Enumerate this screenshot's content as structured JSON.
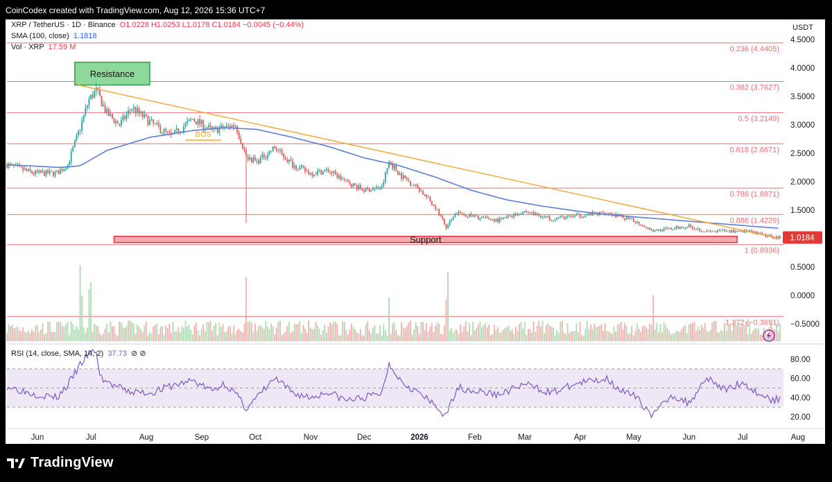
{
  "header": {
    "text": "CoinCodex created with TradingView.com, Aug 12, 2026 15:36 UTC+7"
  },
  "legend": {
    "symbol": "XRP / TetherUS · 1D · Binance",
    "ohlc": "O1.0228 H1.0253 L1.0178 C1.0184 −0.0045 (−0.44%)",
    "sma_label": "SMA (100, close)",
    "sma_value": "1.1818",
    "vol_label": "Vol · XRP",
    "vol_value": "17.59 M",
    "rsi_label": "RSI (14, close, SMA, 14, 2)",
    "rsi_value": "37.73",
    "rsi_icons": "⊘ ⊘"
  },
  "colors": {
    "up": "#26a69a",
    "down": "#ef5350",
    "sma": "#5b7fd6",
    "trend": "#f0a732",
    "fib": "#f26b74",
    "support_fill": "#f7a9ae",
    "support_border": "#e0323f",
    "resistance_fill": "#8fd89c",
    "resistance_border": "#2e9e45",
    "rsi_line": "#7e57c2",
    "rsi_band": "#ede7f6",
    "price_tag": "#e53935"
  },
  "chart_data": {
    "type": "candlestick",
    "title": "XRP / TetherUS · 1D · Binance",
    "currency": "USDT",
    "current_price": "1.0184",
    "price_ticks": [
      "4.5000",
      "4.0000",
      "3.5000",
      "3.0000",
      "2.5000",
      "2.0000",
      "1.5000",
      "1.0000",
      "0.5000",
      "0.0000",
      "−0.5000"
    ],
    "price_tick_values": [
      4.5,
      4.0,
      3.5,
      3.0,
      2.5,
      2.0,
      1.5,
      1.0,
      0.5,
      0.0,
      -0.5
    ],
    "x_ticks": [
      "Jun",
      "Jul",
      "Aug",
      "Sep",
      "Oct",
      "Nov",
      "Dec",
      "2026",
      "Feb",
      "Mar",
      "Apr",
      "May",
      "Jun",
      "Jul",
      "Aug"
    ],
    "x_tick_days": [
      0,
      30,
      61,
      92,
      122,
      153,
      183,
      214,
      245,
      273,
      304,
      334,
      365,
      395,
      426
    ],
    "fib_levels": [
      {
        "label": "0.236 (4.4405)",
        "value": 4.4405
      },
      {
        "label": "0.382 (3.7627)",
        "value": 3.7627
      },
      {
        "label": "0.5 (3.2149)",
        "value": 3.2149
      },
      {
        "label": "0.618 (2.6671)",
        "value": 2.6671
      },
      {
        "label": "0.786 (1.8871)",
        "value": 1.8871
      },
      {
        "label": "0.886 (1.4229)",
        "value": 1.4229
      },
      {
        "label": "1 (0.8936)",
        "value": 0.8936
      },
      {
        "label": "1.272 (−0.3691)",
        "value": -0.3691
      }
    ],
    "resistance_label": "Resistance",
    "support_label": "Support",
    "bos_label": "BOS",
    "rsi_ticks": [
      "80.00",
      "60.00",
      "40.00",
      "20.00"
    ],
    "rsi_tick_values": [
      80,
      60,
      40,
      20
    ],
    "price_anchors": [
      [
        0,
        2.3
      ],
      [
        15,
        2.15
      ],
      [
        28,
        2.15
      ],
      [
        34,
        2.3
      ],
      [
        41,
        2.95
      ],
      [
        46,
        3.45
      ],
      [
        50,
        3.6
      ],
      [
        56,
        3.2
      ],
      [
        63,
        3.0
      ],
      [
        70,
        3.3
      ],
      [
        80,
        3.05
      ],
      [
        92,
        2.8
      ],
      [
        104,
        3.1
      ],
      [
        115,
        2.9
      ],
      [
        122,
        2.95
      ],
      [
        128,
        3.0
      ],
      [
        134,
        2.45
      ],
      [
        140,
        2.35
      ],
      [
        150,
        2.6
      ],
      [
        160,
        2.3
      ],
      [
        170,
        2.15
      ],
      [
        180,
        2.2
      ],
      [
        190,
        2.0
      ],
      [
        200,
        1.85
      ],
      [
        210,
        1.9
      ],
      [
        214,
        2.35
      ],
      [
        221,
        2.1
      ],
      [
        230,
        1.9
      ],
      [
        240,
        1.55
      ],
      [
        246,
        1.2
      ],
      [
        252,
        1.45
      ],
      [
        262,
        1.38
      ],
      [
        275,
        1.32
      ],
      [
        290,
        1.48
      ],
      [
        305,
        1.35
      ],
      [
        320,
        1.4
      ],
      [
        336,
        1.46
      ],
      [
        346,
        1.36
      ],
      [
        352,
        1.3
      ],
      [
        362,
        1.14
      ],
      [
        372,
        1.17
      ],
      [
        382,
        1.22
      ],
      [
        392,
        1.12
      ],
      [
        402,
        1.13
      ],
      [
        412,
        1.14
      ],
      [
        420,
        1.09
      ],
      [
        428,
        1.03
      ],
      [
        433,
        1.02
      ]
    ],
    "sma_anchors": [
      [
        0,
        2.3
      ],
      [
        30,
        2.25
      ],
      [
        41,
        2.28
      ],
      [
        56,
        2.55
      ],
      [
        80,
        2.78
      ],
      [
        104,
        2.9
      ],
      [
        122,
        2.95
      ],
      [
        140,
        2.92
      ],
      [
        160,
        2.78
      ],
      [
        180,
        2.62
      ],
      [
        200,
        2.42
      ],
      [
        220,
        2.28
      ],
      [
        240,
        2.08
      ],
      [
        260,
        1.85
      ],
      [
        280,
        1.68
      ],
      [
        300,
        1.57
      ],
      [
        320,
        1.48
      ],
      [
        340,
        1.41
      ],
      [
        360,
        1.36
      ],
      [
        380,
        1.31
      ],
      [
        400,
        1.26
      ],
      [
        420,
        1.21
      ],
      [
        433,
        1.18
      ]
    ],
    "rsi_anchors": [
      [
        0,
        52
      ],
      [
        15,
        44
      ],
      [
        28,
        40
      ],
      [
        34,
        53
      ],
      [
        41,
        74
      ],
      [
        46,
        86
      ],
      [
        50,
        89
      ],
      [
        52,
        62
      ],
      [
        58,
        54
      ],
      [
        68,
        46
      ],
      [
        80,
        45
      ],
      [
        92,
        52
      ],
      [
        104,
        58
      ],
      [
        115,
        47
      ],
      [
        122,
        55
      ],
      [
        128,
        44
      ],
      [
        134,
        29
      ],
      [
        140,
        40
      ],
      [
        150,
        60
      ],
      [
        160,
        45
      ],
      [
        170,
        40
      ],
      [
        180,
        46
      ],
      [
        190,
        37
      ],
      [
        200,
        40
      ],
      [
        210,
        45
      ],
      [
        214,
        76
      ],
      [
        221,
        57
      ],
      [
        230,
        46
      ],
      [
        240,
        31
      ],
      [
        246,
        20
      ],
      [
        252,
        51
      ],
      [
        262,
        47
      ],
      [
        275,
        43
      ],
      [
        290,
        54
      ],
      [
        305,
        45
      ],
      [
        320,
        55
      ],
      [
        336,
        60
      ],
      [
        346,
        45
      ],
      [
        352,
        41
      ],
      [
        362,
        21
      ],
      [
        372,
        43
      ],
      [
        382,
        34
      ],
      [
        392,
        62
      ],
      [
        402,
        48
      ],
      [
        412,
        56
      ],
      [
        420,
        45
      ],
      [
        428,
        38
      ],
      [
        433,
        37.73
      ]
    ]
  }
}
